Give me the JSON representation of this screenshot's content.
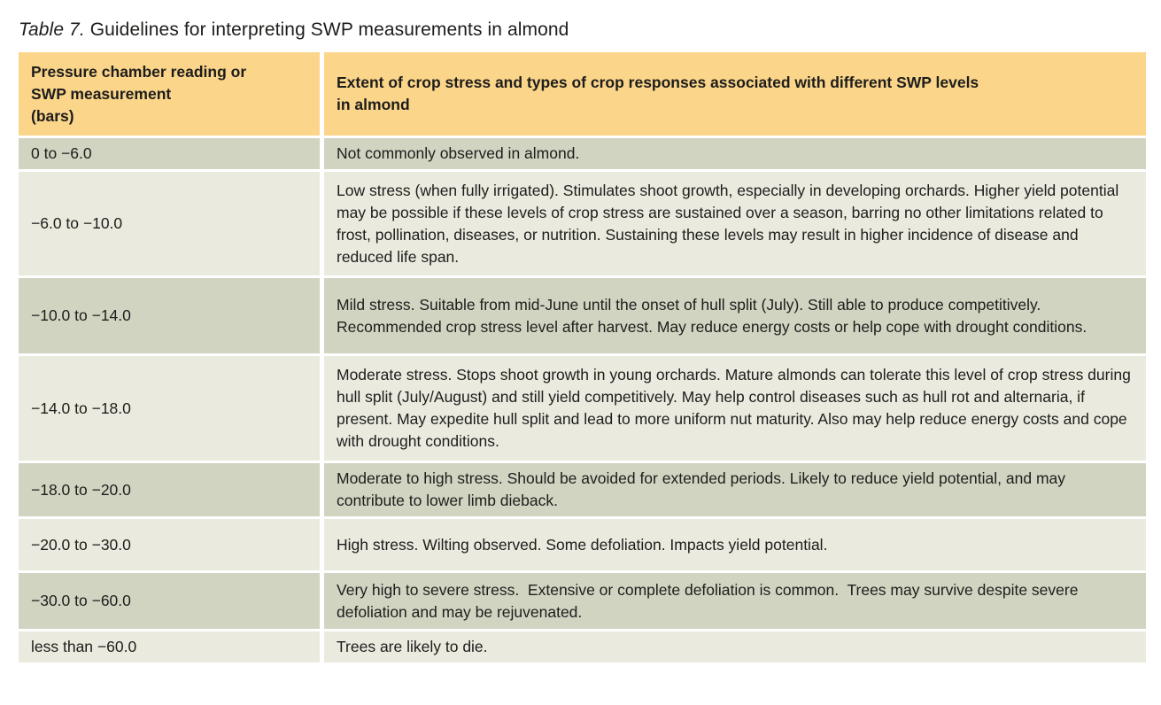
{
  "caption": {
    "label": "Table 7.",
    "text": " Guidelines for interpreting SWP measurements in almond"
  },
  "table": {
    "headers": [
      "Pressure chamber reading or\nSWP measurement\n(bars)",
      "Extent of crop stress and types of crop responses associated with different SWP levels\nin almond"
    ],
    "rows": [
      {
        "range": "0 to −6.0",
        "description": "Not commonly observed in almond."
      },
      {
        "range": "−6.0 to −10.0",
        "description": "Low stress (when fully irrigated). Stimulates shoot growth, especially in developing orchards. Higher yield potential may be possible if these levels of crop stress are sustained over a season, barring no other limitations related to frost, pollination, diseases, or nutrition. Sustaining these levels may result in higher incidence of disease and reduced life span."
      },
      {
        "range": "−10.0 to −14.0",
        "description": "Mild stress. Suitable from mid-June until the onset of hull split (July). Still able to produce competitively. Recommended crop stress level after harvest. May reduce energy costs or help cope with drought conditions."
      },
      {
        "range": "−14.0 to −18.0",
        "description": "Moderate stress. Stops shoot growth in young orchards. Mature almonds can tolerate this level of crop stress during hull split (July/August) and still yield competitively. May help control diseases such as hull rot and alternaria, if present. May expedite hull split and lead to more uniform nut maturity. Also may help reduce energy costs and cope with drought conditions."
      },
      {
        "range": "−18.0 to −20.0",
        "description": "Moderate to high stress. Should be avoided for extended periods. Likely to reduce yield potential, and may contribute to lower limb dieback."
      },
      {
        "range": "−20.0 to −30.0",
        "description": "High stress. Wilting observed. Some defoliation. Impacts yield potential."
      },
      {
        "range": "−30.0 to −60.0",
        "description": "Very high to severe stress.  Extensive or complete defoliation is common.  Trees may survive despite severe defoliation and may be rejuvenated."
      },
      {
        "range": "less than −60.0",
        "description": "Trees are likely to die."
      }
    ]
  },
  "colors": {
    "header_bg": "#FBD58A",
    "row_dark_bg": "#D2D4C2",
    "row_light_bg": "#EAEADF",
    "separator": "#FFFFFF",
    "text": "#1D1D1B"
  }
}
